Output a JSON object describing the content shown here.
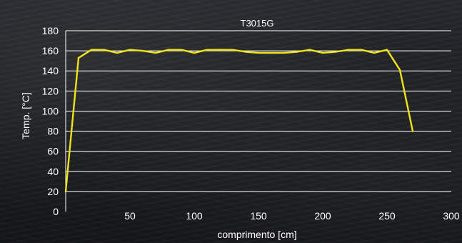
{
  "chart_data": {
    "type": "line",
    "title": "T3015G",
    "xlabel": "comprimento [cm]",
    "ylabel": "Temp. [°C]",
    "xlim": [
      0,
      300
    ],
    "ylim": [
      0,
      180
    ],
    "x_ticks": [
      50,
      100,
      150,
      200,
      250,
      300
    ],
    "y_ticks": [
      0,
      20,
      40,
      60,
      80,
      100,
      120,
      140,
      160,
      180
    ],
    "grid": "horizontal",
    "colors": {
      "line": "#f2e21a",
      "grid": "#ffffff",
      "axis": "#ffffff",
      "text": "#ffffff"
    },
    "series": [
      {
        "x": [
          0,
          10,
          20,
          30,
          40,
          50,
          60,
          70,
          80,
          90,
          100,
          110,
          120,
          130,
          140,
          150,
          160,
          170,
          180,
          190,
          200,
          210,
          220,
          230,
          240,
          250,
          260,
          270
        ],
        "values": [
          20,
          153,
          161,
          161,
          158,
          161,
          160,
          158,
          161,
          161,
          158,
          161,
          161,
          161,
          159,
          158,
          158,
          158,
          159,
          161,
          158,
          159,
          161,
          161,
          158,
          161,
          141,
          80
        ]
      }
    ]
  }
}
